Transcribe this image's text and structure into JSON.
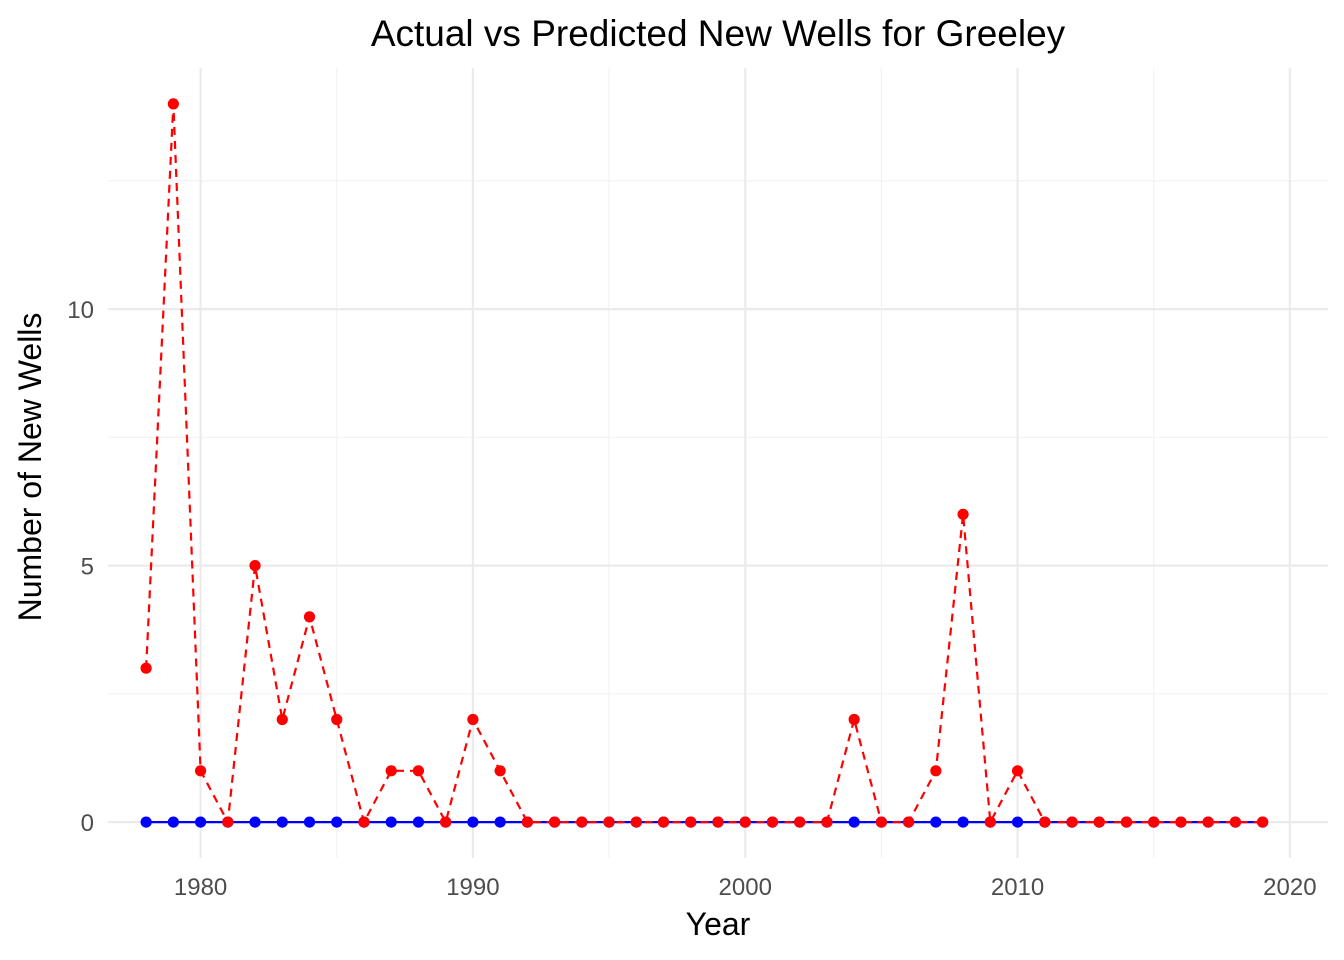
{
  "chart_data": {
    "type": "line",
    "title": "Actual vs Predicted New Wells for Greeley",
    "xlabel": "Year",
    "ylabel": "Number of New Wells",
    "xlim": [
      1976.6,
      2021.4
    ],
    "ylim": [
      -0.7,
      14.7
    ],
    "x_ticks": [
      1980,
      1990,
      2000,
      2010,
      2020
    ],
    "y_ticks": [
      0,
      5,
      10
    ],
    "grid": true,
    "legend": "none",
    "x": [
      1978,
      1979,
      1980,
      1981,
      1982,
      1983,
      1984,
      1985,
      1986,
      1987,
      1988,
      1989,
      1990,
      1991,
      1992,
      1993,
      1994,
      1995,
      1996,
      1997,
      1998,
      1999,
      2000,
      2001,
      2002,
      2003,
      2004,
      2005,
      2006,
      2007,
      2008,
      2009,
      2010,
      2011,
      2012,
      2013,
      2014,
      2015,
      2016,
      2017,
      2018,
      2019
    ],
    "series": [
      {
        "color": "#0000ff",
        "line_style": "solid",
        "values": [
          0,
          0,
          0,
          0,
          0,
          0,
          0,
          0,
          0,
          0,
          0,
          0,
          0,
          0,
          0,
          0,
          0,
          0,
          0,
          0,
          0,
          0,
          0,
          0,
          0,
          0,
          0,
          0,
          0,
          0,
          0,
          0,
          0,
          0,
          0,
          0,
          0,
          0,
          0,
          0,
          0,
          0
        ]
      },
      {
        "color": "#ff0000",
        "line_style": "dashed",
        "values": [
          3,
          14,
          1,
          0,
          5,
          2,
          4,
          2,
          0,
          1,
          1,
          0,
          2,
          1,
          0,
          0,
          0,
          0,
          0,
          0,
          0,
          0,
          0,
          0,
          0,
          0,
          2,
          0,
          0,
          1,
          6,
          0,
          1,
          0,
          0,
          0,
          0,
          0,
          0,
          0,
          0,
          0
        ]
      }
    ]
  }
}
